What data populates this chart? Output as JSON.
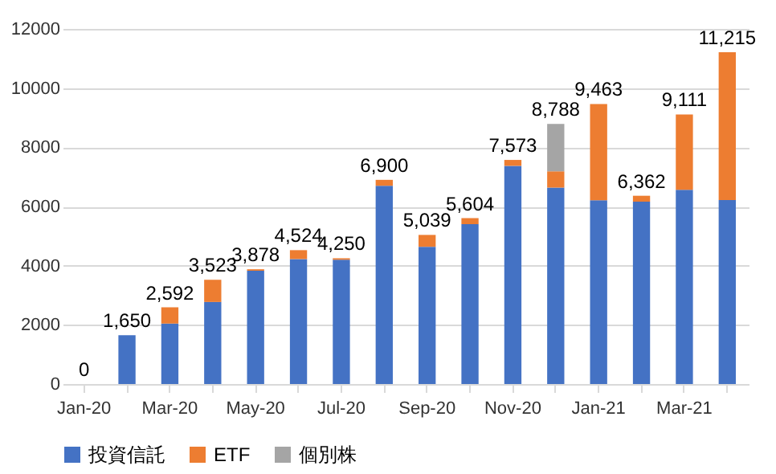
{
  "chart_data": {
    "type": "bar",
    "stacked": true,
    "categories": [
      "Jan-20",
      null,
      "Mar-20",
      null,
      "May-20",
      null,
      "Jul-20",
      null,
      "Sep-20",
      null,
      "Nov-20",
      null,
      "Jan-21",
      null,
      "Mar-21",
      null
    ],
    "series": [
      {
        "name": "投資信託",
        "color": "#4472c4",
        "values": [
          0,
          1650,
          2042,
          2773,
          3828,
          4224,
          4200,
          6700,
          4639,
          5404,
          7373,
          6638,
          6213,
          6162,
          6561,
          6215
        ]
      },
      {
        "name": "ETF",
        "color": "#ed7d31",
        "values": [
          0,
          0,
          550,
          750,
          50,
          300,
          50,
          200,
          400,
          200,
          200,
          550,
          3250,
          200,
          2550,
          5000
        ]
      },
      {
        "name": "個別株",
        "color": "#a5a5a5",
        "values": [
          null,
          null,
          null,
          null,
          null,
          null,
          null,
          null,
          null,
          null,
          null,
          1600,
          null,
          null,
          null,
          null
        ]
      }
    ],
    "totals": [
      "0",
      "1,650",
      "2,592",
      "3,523",
      "3,878",
      "4,524",
      "4,250",
      "6,900",
      "5,039",
      "5,604",
      "7,573",
      "8,788",
      "9,463",
      "6,362",
      "9,111",
      "11,215"
    ],
    "ylim": [
      0,
      12000
    ],
    "yticks": [
      0,
      2000,
      4000,
      6000,
      8000,
      10000,
      12000
    ],
    "grid": "y",
    "legend": "bottom"
  }
}
